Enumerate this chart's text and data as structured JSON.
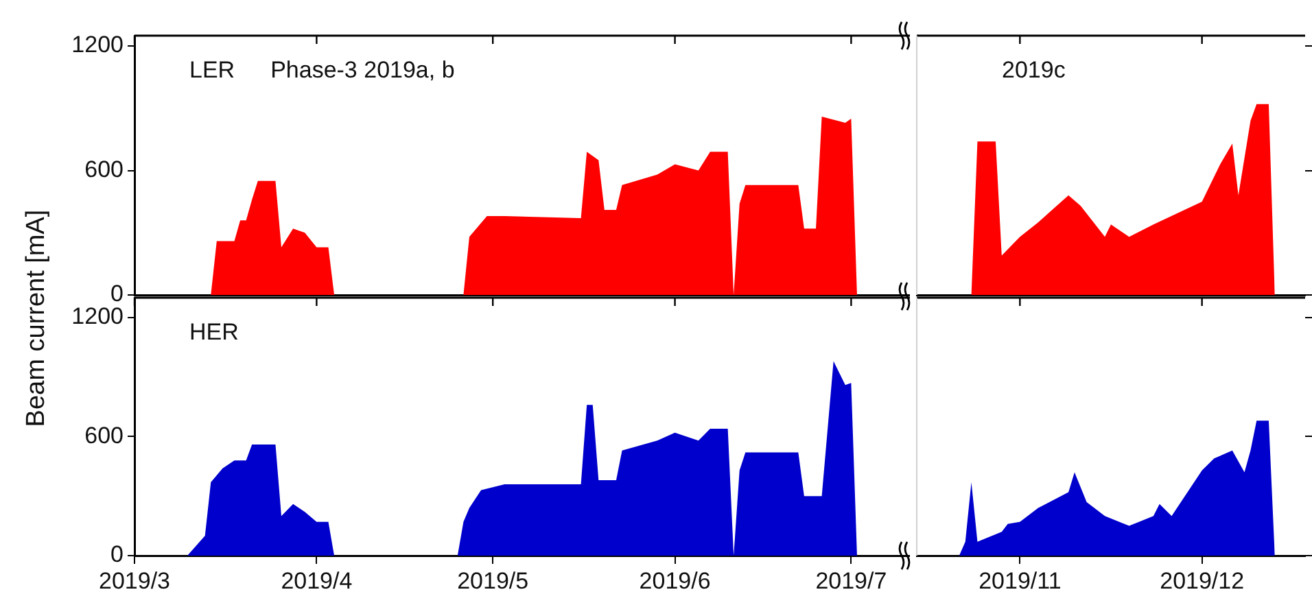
{
  "chart_data": [
    {
      "type": "area",
      "ylabel": "Beam current [mA]",
      "annotations": [
        "LER",
        "Phase-3 2019a, b"
      ],
      "xlim": [
        "2019-03-01",
        "2019-07-11"
      ],
      "xticks": [
        {
          "value": "2019-03-01",
          "label": null
        },
        {
          "value": "2019-04-01",
          "label": null
        },
        {
          "value": "2019-05-01",
          "label": null
        },
        {
          "value": "2019-06-01",
          "label": null
        },
        {
          "value": "2019-07-01",
          "label": null
        }
      ],
      "ylim": [
        0,
        1250
      ],
      "yticks": [
        0,
        600,
        1200
      ],
      "tick_labels": "y",
      "series": [
        {
          "color": "#ff0000",
          "x": [
            "2019-03-10",
            "2019-03-14",
            "2019-03-15",
            "2019-03-18",
            "2019-03-19",
            "2019-03-20",
            "2019-03-21",
            "2019-03-22",
            "2019-03-25",
            "2019-03-26",
            "2019-03-28",
            "2019-03-30",
            "2019-04-01",
            "2019-04-03",
            "2019-04-04",
            "2019-04-26",
            "2019-04-27",
            "2019-04-30",
            "2019-05-03",
            "2019-05-16",
            "2019-05-17",
            "2019-05-19",
            "2019-05-20",
            "2019-05-22",
            "2019-05-23",
            "2019-05-29",
            "2019-06-01",
            "2019-06-05",
            "2019-06-07",
            "2019-06-10",
            "2019-06-11",
            "2019-06-12",
            "2019-06-13",
            "2019-06-22",
            "2019-06-23",
            "2019-06-25",
            "2019-06-26",
            "2019-06-30",
            "2019-07-01",
            "2019-07-02"
          ],
          "values": [
            0,
            0,
            260,
            260,
            360,
            360,
            460,
            550,
            550,
            230,
            320,
            300,
            230,
            230,
            0,
            0,
            280,
            380,
            380,
            370,
            690,
            650,
            410,
            410,
            530,
            580,
            630,
            600,
            690,
            690,
            0,
            440,
            530,
            530,
            320,
            320,
            860,
            830,
            850,
            0
          ]
        }
      ]
    },
    {
      "type": "area",
      "annotations": [
        "2019c"
      ],
      "xlim": [
        "2019-10-15",
        "2019-12-18"
      ],
      "xticks": [
        {
          "value": "2019-11-01",
          "label": null
        },
        {
          "value": "2019-12-01",
          "label": null
        }
      ],
      "ylim": [
        0,
        1250
      ],
      "yticks": [
        0,
        600,
        1200
      ],
      "tick_labels": false,
      "series": [
        {
          "color": "#ff0000",
          "x": [
            "2019-10-22",
            "2019-10-24",
            "2019-10-25",
            "2019-10-28",
            "2019-10-29",
            "2019-11-01",
            "2019-11-04",
            "2019-11-09",
            "2019-11-11",
            "2019-11-15",
            "2019-11-16",
            "2019-11-19",
            "2019-11-23",
            "2019-12-01",
            "2019-12-04",
            "2019-12-06",
            "2019-12-07",
            "2019-12-09",
            "2019-12-10",
            "2019-12-12",
            "2019-12-13"
          ],
          "values": [
            0,
            0,
            740,
            740,
            190,
            280,
            350,
            480,
            430,
            280,
            340,
            280,
            340,
            450,
            630,
            730,
            480,
            840,
            920,
            920,
            0
          ]
        }
      ]
    },
    {
      "type": "area",
      "annotations": [
        "HER"
      ],
      "xlim": [
        "2019-03-01",
        "2019-07-11"
      ],
      "xticks": [
        {
          "value": "2019-03-01",
          "label": "2019/3"
        },
        {
          "value": "2019-04-01",
          "label": "2019/4"
        },
        {
          "value": "2019-05-01",
          "label": "2019/5"
        },
        {
          "value": "2019-06-01",
          "label": "2019/6"
        },
        {
          "value": "2019-07-01",
          "label": "2019/7"
        }
      ],
      "ylim": [
        0,
        1300
      ],
      "yticks": [
        0,
        600,
        1200
      ],
      "series": [
        {
          "color": "#0000cc",
          "x": [
            "2019-03-10",
            "2019-03-13",
            "2019-03-14",
            "2019-03-16",
            "2019-03-18",
            "2019-03-20",
            "2019-03-21",
            "2019-03-25",
            "2019-03-26",
            "2019-03-28",
            "2019-03-30",
            "2019-04-01",
            "2019-04-03",
            "2019-04-04",
            "2019-04-25",
            "2019-04-26",
            "2019-04-27",
            "2019-04-29",
            "2019-05-03",
            "2019-05-16",
            "2019-05-17",
            "2019-05-18",
            "2019-05-19",
            "2019-05-22",
            "2019-05-23",
            "2019-05-29",
            "2019-06-01",
            "2019-06-05",
            "2019-06-07",
            "2019-06-10",
            "2019-06-11",
            "2019-06-12",
            "2019-06-13",
            "2019-06-22",
            "2019-06-23",
            "2019-06-26",
            "2019-06-28",
            "2019-06-30",
            "2019-07-01",
            "2019-07-02"
          ],
          "values": [
            0,
            100,
            370,
            440,
            480,
            480,
            560,
            560,
            200,
            260,
            220,
            170,
            170,
            0,
            0,
            170,
            240,
            330,
            360,
            360,
            760,
            760,
            380,
            380,
            530,
            580,
            620,
            580,
            640,
            640,
            0,
            430,
            520,
            520,
            300,
            300,
            980,
            860,
            870,
            0
          ]
        }
      ]
    },
    {
      "type": "area",
      "xlim": [
        "2019-10-15",
        "2019-12-18"
      ],
      "xticks": [
        {
          "value": "2019-11-01",
          "label": "2019/11"
        },
        {
          "value": "2019-12-01",
          "label": "2019/12"
        }
      ],
      "ylim": [
        0,
        1300
      ],
      "yticks": [
        0,
        600,
        1200
      ],
      "tick_labels": "x",
      "series": [
        {
          "color": "#0000cc",
          "x": [
            "2019-10-22",
            "2019-10-23",
            "2019-10-24",
            "2019-10-25",
            "2019-10-29",
            "2019-10-30",
            "2019-11-01",
            "2019-11-04",
            "2019-11-09",
            "2019-11-10",
            "2019-11-12",
            "2019-11-15",
            "2019-11-19",
            "2019-11-23",
            "2019-11-24",
            "2019-11-26",
            "2019-12-01",
            "2019-12-03",
            "2019-12-06",
            "2019-12-08",
            "2019-12-09",
            "2019-12-10",
            "2019-12-12",
            "2019-12-13"
          ],
          "values": [
            0,
            70,
            370,
            70,
            120,
            160,
            170,
            240,
            320,
            420,
            270,
            200,
            150,
            200,
            260,
            200,
            430,
            490,
            530,
            420,
            530,
            680,
            680,
            0
          ]
        }
      ]
    }
  ]
}
